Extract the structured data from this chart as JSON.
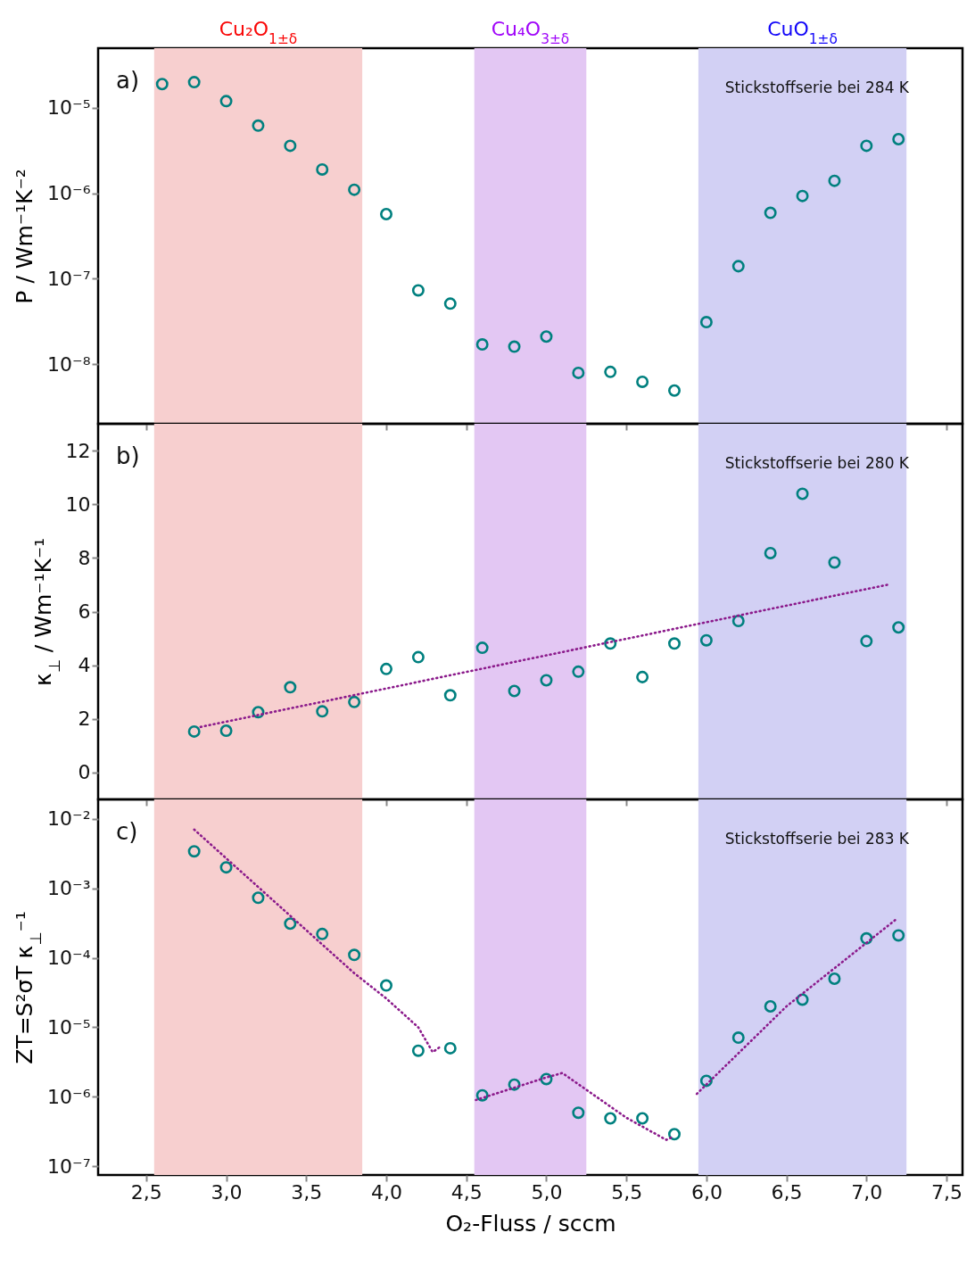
{
  "chart_data": [
    {
      "type": "scatter",
      "ylabel": "P / Wm⁻¹K⁻²",
      "log": true,
      "tick_labels": "y",
      "x": [
        2.6,
        2.8,
        3.0,
        3.2,
        3.4,
        3.6,
        3.8,
        4.0,
        4.2,
        4.4,
        4.6,
        4.8,
        5.0,
        5.2,
        5.4,
        5.6,
        5.8,
        6.0,
        6.2,
        6.4,
        6.6,
        6.8,
        7.0,
        7.2
      ],
      "series": [
        {
          "color": "#00807f",
          "marker": "circle",
          "values": [
            1.9e-05,
            2e-05,
            1.2e-05,
            6.2e-06,
            3.6e-06,
            1.9e-06,
            1.1e-06,
            5.7e-07,
            7.3e-08,
            5.1e-08,
            1.7e-08,
            1.6e-08,
            2.1e-08,
            7.9e-09,
            8.1e-09,
            6.2e-09,
            4.9e-09,
            3.1e-08,
            1.4e-07,
            5.9e-07,
            9.3e-07,
            1.4e-06,
            3.6e-06,
            4.3e-06
          ]
        }
      ],
      "xlim": [
        2.2,
        7.6
      ],
      "xticks": [
        {
          "value": 2.5,
          "label": null
        },
        {
          "value": 3.0,
          "label": null
        },
        {
          "value": 3.5,
          "label": null
        },
        {
          "value": 4.0,
          "label": null
        },
        {
          "value": 4.5,
          "label": null
        },
        {
          "value": 5.0,
          "label": null
        },
        {
          "value": 5.5,
          "label": null
        },
        {
          "value": 6.0,
          "label": null
        },
        {
          "value": 6.5,
          "label": null
        },
        {
          "value": 7.0,
          "label": null
        },
        {
          "value": 7.5,
          "label": null
        }
      ],
      "ylim": [
        2e-09,
        5e-05
      ],
      "yticks": [
        {
          "value": 1e-08,
          "label": "10⁻⁸"
        },
        {
          "value": 1e-07,
          "label": "10⁻⁷"
        },
        {
          "value": 1e-06,
          "label": "10⁻⁶"
        },
        {
          "value": 1e-05,
          "label": "10⁻⁵"
        }
      ],
      "bands": [
        {
          "axis": "x",
          "from": 2.55,
          "to": 3.85,
          "label": "Cu₂O$_{1±δ}$",
          "color": "#f7cfcf"
        },
        {
          "axis": "x",
          "from": 4.55,
          "to": 5.25,
          "label": "Cu₄O$_{3±δ}$",
          "color": "#e3c7f3"
        },
        {
          "axis": "x",
          "from": 5.95,
          "to": 7.25,
          "label": "CuO$_{1±δ}$",
          "color": "#d2d0f4"
        }
      ],
      "annotations": [
        "a)",
        "Stickstoffserie bei 284 K"
      ]
    },
    {
      "type": "scatter",
      "ylabel": "κ$_{⊥}$ / Wm⁻¹K⁻¹",
      "tick_labels": "y",
      "x": [
        2.8,
        3.0,
        3.2,
        3.4,
        3.6,
        3.8,
        4.0,
        4.2,
        4.4,
        4.6,
        4.8,
        5.0,
        5.2,
        5.4,
        5.6,
        5.8,
        6.0,
        6.2,
        6.4,
        6.6,
        6.8,
        7.0,
        7.2
      ],
      "series": [
        {
          "color": "#00807f",
          "marker": "circle",
          "values": [
            1.53,
            1.56,
            2.25,
            3.18,
            2.28,
            2.63,
            3.86,
            4.3,
            2.88,
            4.65,
            3.04,
            3.44,
            3.76,
            4.81,
            3.56,
            4.81,
            4.93,
            5.65,
            8.18,
            10.39,
            7.83,
            4.9,
            5.41
          ]
        },
        {
          "type": "line",
          "color": "#8b1a8b",
          "line_style": "dotted",
          "x": [
            2.84,
            7.13
          ],
          "values": [
            1.7,
            7.0
          ]
        }
      ],
      "xlim": [
        2.2,
        7.6
      ],
      "xticks": [
        {
          "value": 2.5,
          "label": null
        },
        {
          "value": 3.0,
          "label": null
        },
        {
          "value": 3.5,
          "label": null
        },
        {
          "value": 4.0,
          "label": null
        },
        {
          "value": 4.5,
          "label": null
        },
        {
          "value": 5.0,
          "label": null
        },
        {
          "value": 5.5,
          "label": null
        },
        {
          "value": 6.0,
          "label": null
        },
        {
          "value": 6.5,
          "label": null
        },
        {
          "value": 7.0,
          "label": null
        },
        {
          "value": 7.5,
          "label": null
        }
      ],
      "ylim": [
        -1,
        13
      ],
      "yticks": [
        0,
        2,
        4,
        6,
        8,
        10,
        12
      ],
      "bands": [
        {
          "axis": "x",
          "from": 2.55,
          "to": 3.85,
          "color": "#f7cfcf"
        },
        {
          "axis": "x",
          "from": 4.55,
          "to": 5.25,
          "color": "#e3c7f3"
        },
        {
          "axis": "x",
          "from": 5.95,
          "to": 7.25,
          "color": "#d2d0f4"
        }
      ],
      "annotations": [
        "b)",
        "Stickstoffserie bei 280 K"
      ]
    },
    {
      "type": "scatter",
      "xlabel": "O₂-Fluss / sccm",
      "ylabel": "ZT=S²σT κ$_{⊥}$⁻¹",
      "log": true,
      "x": [
        2.8,
        3.0,
        3.2,
        3.4,
        3.6,
        3.8,
        4.0,
        4.2,
        4.4,
        4.6,
        4.8,
        5.0,
        5.2,
        5.4,
        5.6,
        5.8,
        6.0,
        6.2,
        6.4,
        6.6,
        6.8,
        7.0,
        7.2
      ],
      "series": [
        {
          "color": "#00807f",
          "marker": "circle",
          "values": [
            0.0034,
            0.002,
            0.00073,
            0.00031,
            0.00022,
            0.00011,
            4e-05,
            4.6e-06,
            5e-06,
            1.05e-06,
            1.5e-06,
            1.8e-06,
            5.9e-07,
            4.9e-07,
            4.9e-07,
            2.9e-07,
            1.7e-06,
            7.1e-06,
            2e-05,
            2.5e-05,
            5e-05,
            0.00019,
            0.00021
          ]
        },
        {
          "type": "line",
          "color": "#8b1a8b",
          "line_style": "dotted",
          "x": [
            2.8,
            3.8,
            4.0,
            4.2,
            4.29,
            4.33
          ],
          "values": [
            0.007,
            6e-05,
            2.6e-05,
            1e-05,
            4.4e-06,
            5.1e-06
          ]
        },
        {
          "type": "line",
          "color": "#8b1a8b",
          "line_style": "dotted",
          "x": [
            4.56,
            5.0,
            5.1,
            5.5,
            5.75,
            5.78
          ],
          "values": [
            9e-07,
            1.9e-06,
            2.2e-06,
            5e-07,
            2.4e-07,
            2.6e-07
          ]
        },
        {
          "type": "line",
          "color": "#8b1a8b",
          "line_style": "dotted",
          "x": [
            5.94,
            6.5,
            7.18
          ],
          "values": [
            1.1e-06,
            2e-05,
            0.00035
          ]
        }
      ],
      "xlim": [
        2.2,
        7.6
      ],
      "xticks": [
        {
          "value": 2.5,
          "label": "2,5"
        },
        {
          "value": 3.0,
          "label": "3,0"
        },
        {
          "value": 3.5,
          "label": "3,5"
        },
        {
          "value": 4.0,
          "label": "4,0"
        },
        {
          "value": 4.5,
          "label": "4,5"
        },
        {
          "value": 5.0,
          "label": "5,0"
        },
        {
          "value": 5.5,
          "label": "5,5"
        },
        {
          "value": 6.0,
          "label": "6,0"
        },
        {
          "value": 6.5,
          "label": "6,5"
        },
        {
          "value": 7.0,
          "label": "7,0"
        },
        {
          "value": 7.5,
          "label": "7,5"
        }
      ],
      "ylim": [
        7.5e-08,
        0.019
      ],
      "yticks": [
        {
          "value": 1e-07,
          "label": "10⁻⁷"
        },
        {
          "value": 1e-06,
          "label": "10⁻⁶"
        },
        {
          "value": 1e-05,
          "label": "10⁻⁵"
        },
        {
          "value": 0.0001,
          "label": "10⁻⁴"
        },
        {
          "value": 0.001,
          "label": "10⁻³"
        },
        {
          "value": 0.01,
          "label": "10⁻²"
        }
      ],
      "bands": [
        {
          "axis": "x",
          "from": 2.55,
          "to": 3.85,
          "color": "#f7cfcf"
        },
        {
          "axis": "x",
          "from": 4.55,
          "to": 5.25,
          "color": "#e3c7f3"
        },
        {
          "axis": "x",
          "from": 5.95,
          "to": 7.25,
          "color": "#d2d0f4"
        }
      ],
      "annotations": [
        "c)",
        "Stickstoffserie bei 283 K"
      ]
    }
  ]
}
